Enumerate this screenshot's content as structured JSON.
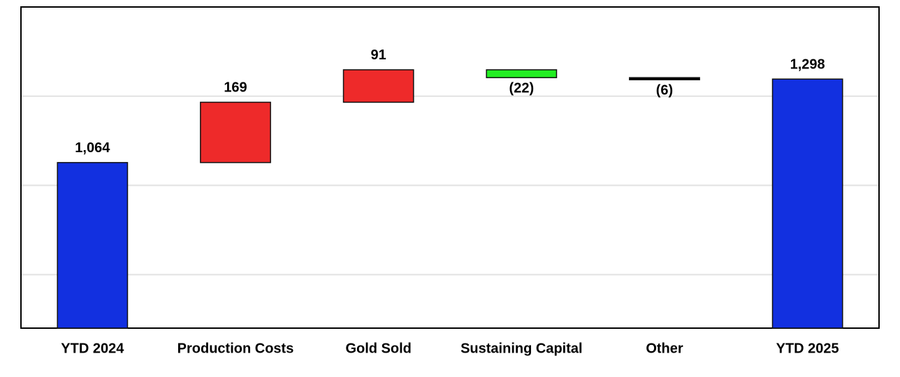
{
  "chart_data": {
    "type": "waterfall",
    "categories": [
      "YTD 2024",
      "Production Costs",
      "Gold Sold",
      "Sustaining Capital",
      "Other",
      "YTD 2025"
    ],
    "values": [
      1064,
      169,
      91,
      -22,
      -6,
      1298
    ],
    "value_labels": [
      "1,064",
      "169",
      "91",
      "(22)",
      "(6)",
      "1,298"
    ],
    "totals": [
      true,
      false,
      false,
      false,
      false,
      true
    ],
    "colors": [
      "#1230e0",
      "#ee2a2a",
      "#ee2a2a",
      "#22ee22",
      "#000000",
      "#1230e0"
    ],
    "ylim": [
      600,
      1500
    ],
    "yticks": [
      750,
      1000,
      1250
    ],
    "grid": true,
    "show_tick_labels": false
  }
}
